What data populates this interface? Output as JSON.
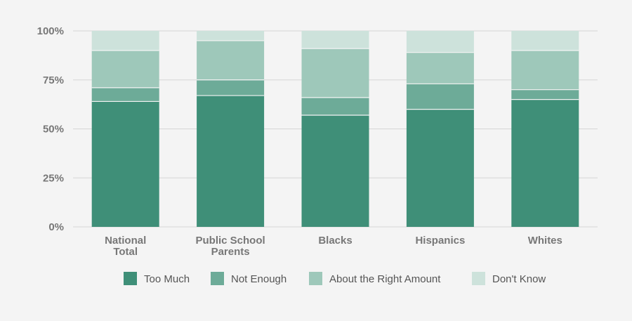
{
  "chart_data": {
    "type": "bar",
    "stacked": true,
    "categories": [
      "National Total",
      "Public School Parents",
      "Blacks",
      "Hispanics",
      "Whites"
    ],
    "category_lines": [
      [
        "National",
        "Total"
      ],
      [
        "Public School",
        "Parents"
      ],
      [
        "Blacks"
      ],
      [
        "Hispanics"
      ],
      [
        "Whites"
      ]
    ],
    "series": [
      {
        "name": "Too Much",
        "values": [
          64,
          67,
          57,
          60,
          65
        ],
        "color": "#3f8f78"
      },
      {
        "name": "Not Enough",
        "values": [
          7,
          8,
          9,
          13,
          5
        ],
        "color": "#6dab98"
      },
      {
        "name": "About the Right Amount",
        "values": [
          19,
          20,
          25,
          16,
          20
        ],
        "color": "#9ec8ba"
      },
      {
        "name": "Don't Know",
        "values": [
          10,
          5,
          9,
          11,
          10
        ],
        "color": "#cde2db"
      }
    ],
    "ylim": [
      0,
      100
    ],
    "yticks": [
      0,
      25,
      50,
      75,
      100
    ],
    "ytick_labels": [
      "0%",
      "25%",
      "50%",
      "75%",
      "100%"
    ],
    "title": "",
    "xlabel": "",
    "ylabel": "",
    "grid": true,
    "legend": "bottom"
  },
  "colors": {
    "background": "#f4f4f4",
    "grid": "#d6d6d6",
    "separator": "#f4f4f4"
  }
}
